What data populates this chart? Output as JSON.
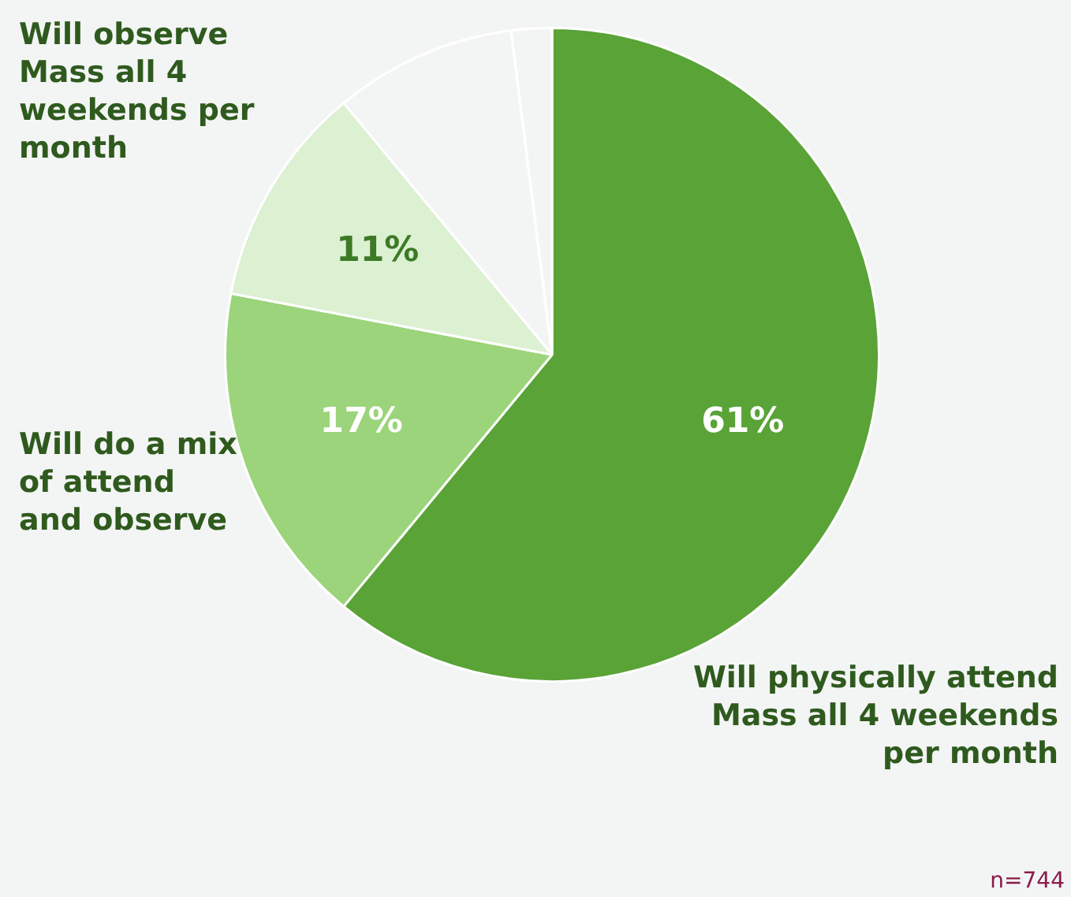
{
  "chart_data": {
    "type": "pie",
    "categories": [
      "Will physically attend Mass all 4 weekends per month",
      "Will do a mix of attend and observe",
      "Will observe Mass all 4 weekends per month",
      null,
      null
    ],
    "values": [
      61,
      17,
      11,
      9,
      2
    ],
    "colors": [
      "#5aa337",
      "#9bd47a",
      "#dcf0d2",
      "#f3f5f4",
      "#f3f5f4"
    ],
    "value_labels": [
      "61%",
      "17%",
      "11%",
      null,
      null
    ],
    "legend": false,
    "annotations": [
      "n=744"
    ]
  }
}
